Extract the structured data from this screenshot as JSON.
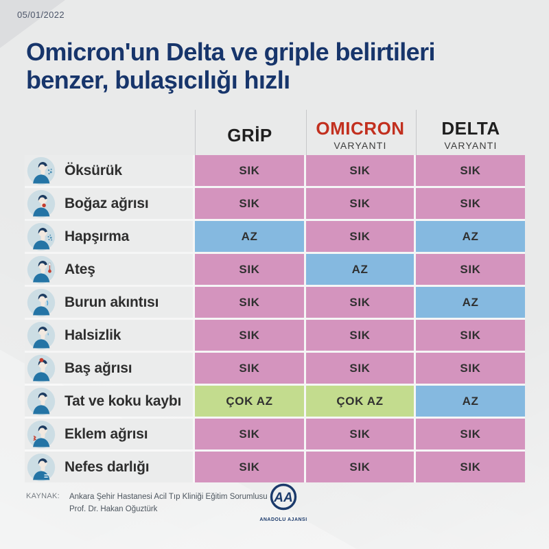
{
  "meta": {
    "date": "05/01/2022"
  },
  "title": {
    "line1": "Omicron'un Delta ve griple belirtileri",
    "line2": "benzer, bulaşıcılığı hızlı"
  },
  "table": {
    "columns": [
      {
        "key": "grip",
        "label": "GRİP",
        "sublabel": "",
        "color": "#1f1f1f"
      },
      {
        "key": "omicron",
        "label": "OMICRON",
        "sublabel": "VARYANTI",
        "color": "#c2301f"
      },
      {
        "key": "delta",
        "label": "DELTA",
        "sublabel": "VARYANTI",
        "color": "#1f1f1f"
      }
    ],
    "levels": {
      "SIK": "#d494be",
      "AZ": "#85b9e0",
      "ÇOK AZ": "#c3dc8e"
    },
    "rows": [
      {
        "icon": "cough-icon",
        "label": "Öksürük",
        "values": [
          "SIK",
          "SIK",
          "SIK"
        ]
      },
      {
        "icon": "sore-throat-icon",
        "label": "Boğaz ağrısı",
        "values": [
          "SIK",
          "SIK",
          "SIK"
        ]
      },
      {
        "icon": "sneezing-icon",
        "label": "Hapşırma",
        "values": [
          "AZ",
          "SIK",
          "AZ"
        ]
      },
      {
        "icon": "fever-icon",
        "label": "Ateş",
        "values": [
          "SIK",
          "AZ",
          "SIK"
        ]
      },
      {
        "icon": "runny-nose-icon",
        "label": "Burun akıntısı",
        "values": [
          "SIK",
          "SIK",
          "AZ"
        ]
      },
      {
        "icon": "fatigue-icon",
        "label": "Halsizlik",
        "values": [
          "SIK",
          "SIK",
          "SIK"
        ]
      },
      {
        "icon": "headache-icon",
        "label": "Baş ağrısı",
        "values": [
          "SIK",
          "SIK",
          "SIK"
        ]
      },
      {
        "icon": "taste-smell-loss-icon",
        "label": "Tat ve koku kaybı",
        "values": [
          "ÇOK AZ",
          "ÇOK AZ",
          "AZ"
        ]
      },
      {
        "icon": "joint-pain-icon",
        "label": "Eklem ağrısı",
        "values": [
          "SIK",
          "SIK",
          "SIK"
        ]
      },
      {
        "icon": "breath-shortness-icon",
        "label": "Nefes darlığı",
        "values": [
          "SIK",
          "SIK",
          "SIK"
        ]
      }
    ]
  },
  "source": {
    "label": "KAYNAK:",
    "line1": "Ankara Şehir Hastanesi Acil Tıp Kliniği Eğitim Sorumlusu",
    "line2": "Prof. Dr. Hakan Oğuztürk"
  },
  "logo": {
    "monogram": "AA",
    "caption": "ANADOLU AJANSI"
  },
  "chart_data": {
    "type": "table",
    "title": "Omicron'un Delta ve griple belirtileri benzer, bulaşıcılığı hızlı",
    "columns": [
      "GRİP",
      "OMICRON VARYANTI",
      "DELTA VARYANTI"
    ],
    "categories": [
      "Öksürük",
      "Boğaz ağrısı",
      "Hapşırma",
      "Ateş",
      "Burun akıntısı",
      "Halsizlik",
      "Baş ağrısı",
      "Tat ve koku kaybı",
      "Eklem ağrısı",
      "Nefes darlığı"
    ],
    "series": [
      {
        "name": "GRİP",
        "values": [
          "SIK",
          "SIK",
          "AZ",
          "SIK",
          "SIK",
          "SIK",
          "SIK",
          "ÇOK AZ",
          "SIK",
          "SIK"
        ]
      },
      {
        "name": "OMICRON VARYANTI",
        "values": [
          "SIK",
          "SIK",
          "SIK",
          "AZ",
          "SIK",
          "SIK",
          "SIK",
          "ÇOK AZ",
          "SIK",
          "SIK"
        ]
      },
      {
        "name": "DELTA VARYANTI",
        "values": [
          "SIK",
          "SIK",
          "AZ",
          "SIK",
          "AZ",
          "SIK",
          "SIK",
          "AZ",
          "SIK",
          "SIK"
        ]
      }
    ],
    "legend": {
      "SIK": "#d494be",
      "AZ": "#85b9e0",
      "ÇOK AZ": "#c3dc8e"
    }
  }
}
